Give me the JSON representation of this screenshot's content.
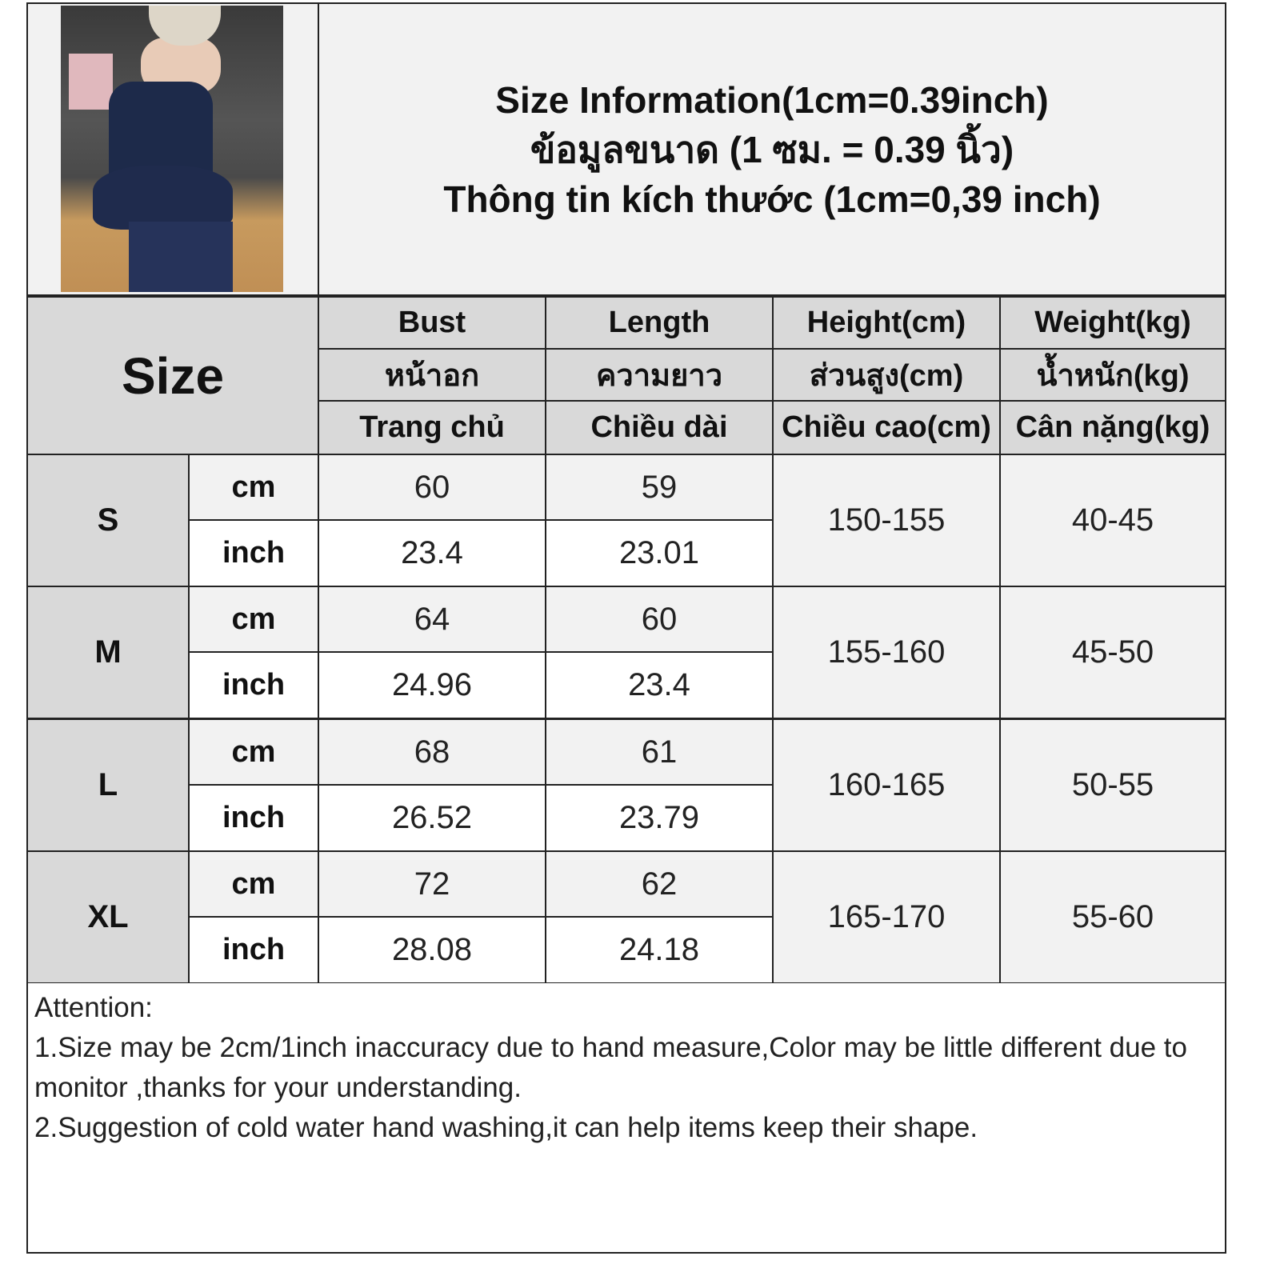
{
  "title": {
    "en": "Size Information(1cm=0.39inch)",
    "th": "ข้อมูลขนาด (1 ซม. = 0.39 นิ้ว)",
    "vi": "Thông tin kích thước (1cm=0,39 inch)"
  },
  "table": {
    "size_label": "Size",
    "columns": [
      {
        "en": "Bust",
        "th": "หน้าอก",
        "vi": "Trang chủ"
      },
      {
        "en": "Length",
        "th": "ความยาว",
        "vi": "Chiều dài"
      },
      {
        "en": "Height(cm)",
        "th": "ส่วนสูง(cm)",
        "vi": "Chiều cao(cm)"
      },
      {
        "en": "Weight(kg)",
        "th": "น้ำหนัก(kg)",
        "vi": "Cân nặng(kg)"
      }
    ],
    "units": {
      "cm": "cm",
      "inch": "inch"
    },
    "rows": [
      {
        "size": "S",
        "bust_cm": "60",
        "bust_inch": "23.4",
        "length_cm": "59",
        "length_inch": "23.01",
        "height": "150-155",
        "weight": "40-45"
      },
      {
        "size": "M",
        "bust_cm": "64",
        "bust_inch": "24.96",
        "length_cm": "60",
        "length_inch": "23.4",
        "height": "155-160",
        "weight": "45-50"
      },
      {
        "size": "L",
        "bust_cm": "68",
        "bust_inch": "26.52",
        "length_cm": "61",
        "length_inch": "23.79",
        "height": "160-165",
        "weight": "50-55"
      },
      {
        "size": "XL",
        "bust_cm": "72",
        "bust_inch": "28.08",
        "length_cm": "62",
        "length_inch": "24.18",
        "height": "165-170",
        "weight": "55-60"
      }
    ]
  },
  "attention": {
    "heading": "Attention:",
    "notes": [
      "1.Size may be 2cm/1inch inaccuracy due to hand measure,Color may be little different due to monitor ,thanks for your understanding.",
      "2.Suggestion of cold water hand washing,it can help items keep their shape."
    ]
  },
  "colors": {
    "header_bg": "#d9d9d9",
    "cell_grey": "#f2f2f2",
    "border": "#222222",
    "garment": "#1d2a4a"
  }
}
